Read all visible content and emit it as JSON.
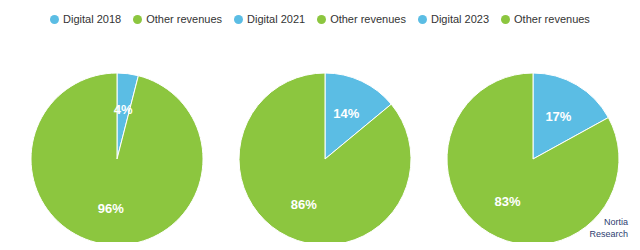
{
  "chart_data": [
    {
      "type": "pie",
      "categories": [
        "Digital 2018",
        "Other revenues"
      ],
      "values": [
        4,
        96
      ],
      "value_labels": [
        "4%",
        "96%"
      ],
      "colors": [
        "#5bbde4",
        "#8cc63f"
      ],
      "data_labels": true,
      "legend": "top"
    },
    {
      "type": "pie",
      "categories": [
        "Digital 2021",
        "Other revenues"
      ],
      "values": [
        14,
        86
      ],
      "value_labels": [
        "14%",
        "86%"
      ],
      "colors": [
        "#5bbde4",
        "#8cc63f"
      ],
      "data_labels": true,
      "legend": "top"
    },
    {
      "type": "pie",
      "categories": [
        "Digital 2023",
        "Other revenues"
      ],
      "values": [
        17,
        83
      ],
      "value_labels": [
        "17%",
        "83%"
      ],
      "colors": [
        "#5bbde4",
        "#8cc63f"
      ],
      "data_labels": true,
      "legend": "top",
      "annotations": [
        "Nortia\nResearch"
      ]
    }
  ]
}
